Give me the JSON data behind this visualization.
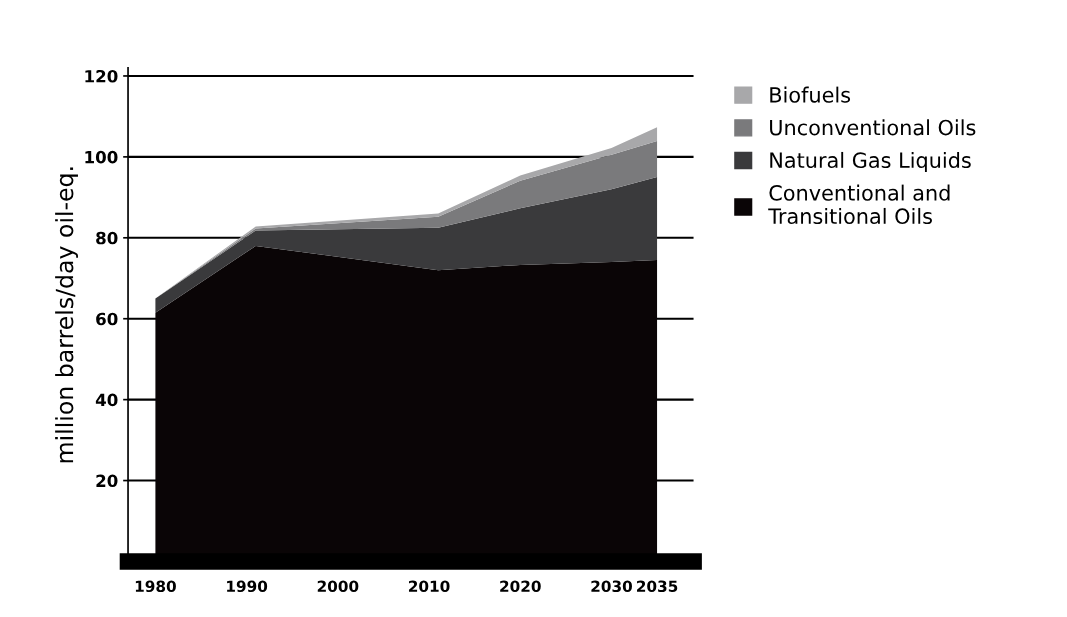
{
  "chart_data": {
    "type": "area",
    "stacked": true,
    "ylabel": "million barrels/day oil-eq.",
    "x": [
      1980,
      1991,
      2011,
      2020,
      2030,
      2035
    ],
    "series": [
      {
        "name": "Conventional and\nTransitional Oils",
        "color": "#0a0506",
        "values": [
          61.5,
          78,
          72,
          73.3,
          74,
          74.5
        ]
      },
      {
        "name": "Natural Gas Liquids",
        "color": "#3a3a3c",
        "values": [
          3.5,
          3.8,
          10.5,
          14,
          18,
          20.5
        ]
      },
      {
        "name": "Unconventional Oils",
        "color": "#7a7a7c",
        "values": [
          0,
          0.5,
          2.7,
          6.8,
          8.5,
          8.9
        ]
      },
      {
        "name": "Biofuels",
        "color": "#a8a8aa",
        "values": [
          0,
          0.5,
          0.8,
          1.3,
          1.7,
          3.4
        ]
      }
    ],
    "xlim": [
      1977,
      2039
    ],
    "xticks": [
      1980,
      1990,
      2000,
      2010,
      2020,
      2030,
      2035
    ],
    "ylim": [
      0,
      122
    ],
    "yticks": [
      20,
      40,
      60,
      80,
      100,
      120
    ],
    "grid": "y",
    "legend": "right"
  }
}
